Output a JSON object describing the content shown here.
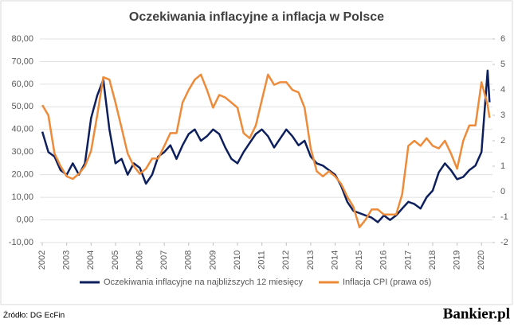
{
  "chart_data": {
    "type": "line",
    "title": "Oczekiwania inflacyjne a inflacja w Polsce",
    "source": "Źródło: DG EcFin",
    "brand": "Bankier.pl",
    "x": [
      2002,
      2002.25,
      2002.5,
      2002.75,
      2003,
      2003.25,
      2003.5,
      2003.75,
      2004,
      2004.25,
      2004.5,
      2004.75,
      2005,
      2005.25,
      2005.5,
      2005.75,
      2006,
      2006.25,
      2006.5,
      2006.75,
      2007,
      2007.25,
      2007.5,
      2007.75,
      2008,
      2008.25,
      2008.5,
      2008.75,
      2009,
      2009.25,
      2009.5,
      2009.75,
      2010,
      2010.25,
      2010.5,
      2010.75,
      2011,
      2011.25,
      2011.5,
      2011.75,
      2012,
      2012.25,
      2012.5,
      2012.75,
      2013,
      2013.25,
      2013.5,
      2013.75,
      2014,
      2014.25,
      2014.5,
      2014.75,
      2015,
      2015.25,
      2015.5,
      2015.75,
      2016,
      2016.25,
      2016.5,
      2016.75,
      2017,
      2017.25,
      2017.5,
      2017.75,
      2018,
      2018.25,
      2018.5,
      2018.75,
      2019,
      2019.25,
      2019.5,
      2019.75,
      2020,
      2020.25,
      2020.33
    ],
    "series": [
      {
        "name": "Oczekiwania inflacyjne na najbliższych 12 miesięcy",
        "color": "#0d1f5c",
        "axis": "y",
        "values": [
          39,
          30,
          28,
          22,
          20,
          25,
          20,
          25,
          45,
          55,
          62,
          40,
          25,
          27,
          20,
          25,
          23,
          16,
          20,
          28,
          30,
          33,
          27,
          33,
          38,
          40,
          35,
          37,
          40,
          38,
          32,
          27,
          25,
          30,
          34,
          38,
          40,
          37,
          32,
          36,
          40,
          37,
          33,
          35,
          28,
          25,
          24,
          22,
          20,
          15,
          8,
          4,
          3,
          2,
          1,
          -1,
          2,
          0,
          2,
          5,
          8,
          7,
          5,
          10,
          13,
          21,
          25,
          22,
          18,
          19,
          22,
          24,
          30,
          66,
          52
        ]
      },
      {
        "name": "Inflacja CPI (prawa oś)",
        "color": "#ed8b3a",
        "axis": "y2",
        "values": [
          3.4,
          3.0,
          1.5,
          1.0,
          0.6,
          0.5,
          0.7,
          1.0,
          1.6,
          3.0,
          4.5,
          4.4,
          3.5,
          2.5,
          1.5,
          1.0,
          0.7,
          0.9,
          1.3,
          1.3,
          1.8,
          2.3,
          2.3,
          3.5,
          4.0,
          4.4,
          4.6,
          4.0,
          3.3,
          3.8,
          3.7,
          3.5,
          3.3,
          2.3,
          2.1,
          2.6,
          3.6,
          4.6,
          4.2,
          4.3,
          4.3,
          4.0,
          3.9,
          3.3,
          1.7,
          0.8,
          0.6,
          0.8,
          0.6,
          0.3,
          -0.2,
          -0.6,
          -1.4,
          -1.1,
          -0.7,
          -0.7,
          -0.9,
          -0.9,
          -0.9,
          -0.1,
          1.8,
          2.0,
          1.8,
          2.1,
          1.8,
          1.7,
          2.0,
          1.5,
          0.9,
          2.0,
          2.6,
          2.6,
          4.3,
          3.4,
          2.9
        ]
      }
    ],
    "xlim": [
      2001.9,
      2020.45
    ],
    "xticks": [
      2002,
      2003,
      2004,
      2005,
      2006,
      2007,
      2008,
      2009,
      2010,
      2011,
      2012,
      2013,
      2014,
      2015,
      2016,
      2017,
      2018,
      2019,
      2020
    ],
    "ylim": [
      -10,
      80
    ],
    "yticks": [
      {
        "value": -10,
        "label": "-10,00"
      },
      {
        "value": 0,
        "label": "0,00"
      },
      {
        "value": 10,
        "label": "10,00"
      },
      {
        "value": 20,
        "label": "20,00"
      },
      {
        "value": 30,
        "label": "30,00"
      },
      {
        "value": 40,
        "label": "40,00"
      },
      {
        "value": 50,
        "label": "50,00"
      },
      {
        "value": 60,
        "label": "60,00"
      },
      {
        "value": 70,
        "label": "70,00"
      },
      {
        "value": 80,
        "label": "80,00"
      }
    ],
    "y2lim": [
      -2,
      6
    ],
    "y2ticks": [
      -2,
      -1,
      0,
      1,
      2,
      3,
      4,
      5,
      6
    ],
    "grid": true
  }
}
